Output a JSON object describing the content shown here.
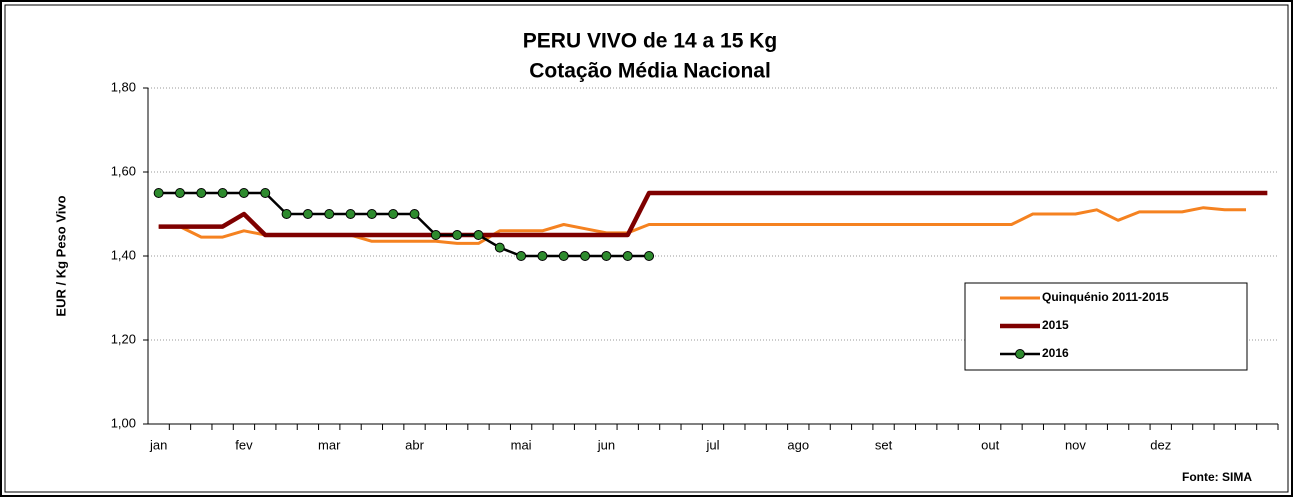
{
  "chart_data": {
    "type": "line",
    "title": "PERU VIVO de 14 a 15 Kg",
    "subtitle": "Cotação Média Nacional",
    "y_label": "EUR / Kg Peso Vivo",
    "source": "Fonte: SIMA",
    "categories": [
      "jan",
      null,
      null,
      null,
      "fev",
      null,
      null,
      null,
      "mar",
      null,
      null,
      null,
      "abr",
      null,
      null,
      null,
      null,
      "mai",
      null,
      null,
      null,
      "jun",
      null,
      null,
      null,
      null,
      "jul",
      null,
      null,
      null,
      "ago",
      null,
      null,
      null,
      "set",
      null,
      null,
      null,
      null,
      "out",
      null,
      null,
      null,
      "nov",
      null,
      null,
      null,
      "dez",
      null,
      null,
      null,
      null,
      null
    ],
    "ylim": [
      1.0,
      1.8
    ],
    "yticks": [
      {
        "value": 1.0,
        "label": "1,00"
      },
      {
        "value": 1.2,
        "label": "1,20"
      },
      {
        "value": 1.4,
        "label": "1,40"
      },
      {
        "value": 1.6,
        "label": "1,60"
      },
      {
        "value": 1.8,
        "label": "1,80"
      }
    ],
    "grid": true,
    "legend": "center-right",
    "series": [
      {
        "name": "Quinquénio 2011-2015",
        "color": "#f58220",
        "line_width": 3,
        "values": [
          1.47,
          1.47,
          1.445,
          1.445,
          1.46,
          1.45,
          1.45,
          1.45,
          1.45,
          1.45,
          1.435,
          1.435,
          1.435,
          1.435,
          1.43,
          1.43,
          1.46,
          1.46,
          1.46,
          1.475,
          1.465,
          1.455,
          1.455,
          1.475,
          1.475,
          1.475,
          1.475,
          1.475,
          1.475,
          1.475,
          1.475,
          1.475,
          1.475,
          1.475,
          1.475,
          1.475,
          1.475,
          1.475,
          1.475,
          1.475,
          1.475,
          1.5,
          1.5,
          1.5,
          1.51,
          1.485,
          1.505,
          1.505,
          1.505,
          1.515,
          1.51,
          1.51,
          null
        ]
      },
      {
        "name": "2015",
        "color": "#7f0000",
        "line_width": 4.5,
        "values": [
          1.47,
          1.47,
          1.47,
          1.47,
          1.5,
          1.45,
          1.45,
          1.45,
          1.45,
          1.45,
          1.45,
          1.45,
          1.45,
          1.45,
          1.45,
          1.45,
          1.45,
          1.45,
          1.45,
          1.45,
          1.45,
          1.45,
          1.45,
          1.55,
          1.55,
          1.55,
          1.55,
          1.55,
          1.55,
          1.55,
          1.55,
          1.55,
          1.55,
          1.55,
          1.55,
          1.55,
          1.55,
          1.55,
          1.55,
          1.55,
          1.55,
          1.55,
          1.55,
          1.55,
          1.55,
          1.55,
          1.55,
          1.55,
          1.55,
          1.55,
          1.55,
          1.55,
          1.55
        ]
      },
      {
        "name": "2016",
        "color": "#000000",
        "marker_color": "#2e8b2e",
        "line_width": 2.5,
        "values": [
          1.55,
          1.55,
          1.55,
          1.55,
          1.55,
          1.55,
          1.5,
          1.5,
          1.5,
          1.5,
          1.5,
          1.5,
          1.5,
          1.45,
          1.45,
          1.45,
          1.42,
          1.4,
          1.4,
          1.4,
          1.4,
          1.4,
          1.4,
          1.4,
          null,
          null,
          null,
          null,
          null,
          null,
          null,
          null,
          null,
          null,
          null,
          null,
          null,
          null,
          null,
          null,
          null,
          null,
          null,
          null,
          null,
          null,
          null,
          null,
          null,
          null,
          null,
          null,
          null
        ]
      }
    ]
  }
}
